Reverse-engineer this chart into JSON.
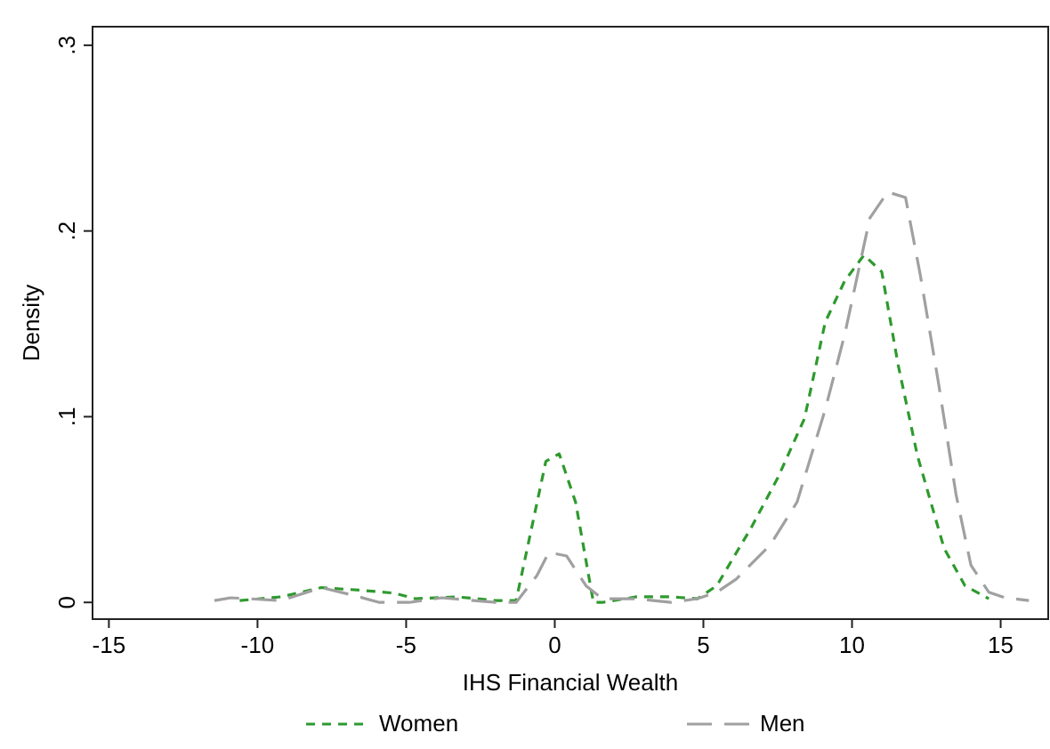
{
  "chart_data": {
    "type": "line",
    "xlabel": "IHS Financial Wealth",
    "ylabel": "Density",
    "xlim": [
      -15.55,
      16.6
    ],
    "ylim": [
      -0.009,
      0.31
    ],
    "xticks": [
      -15,
      -10,
      -5,
      0,
      5,
      10,
      15
    ],
    "yticks": [
      {
        "value": 0,
        "label": "0"
      },
      {
        "value": 0.1,
        "label": ".1"
      },
      {
        "value": 0.2,
        "label": ".2"
      },
      {
        "value": 0.3,
        "label": ".3"
      }
    ],
    "grid": false,
    "legend": "bottom",
    "marker": "none",
    "line_style": "dashed",
    "series": [
      {
        "name": "Women",
        "color": "#2e9a2e",
        "x": [
          -10.6,
          -9.2,
          -7.85,
          -6.5,
          -5.4,
          -4.7,
          -3.3,
          -2.0,
          -1.3,
          -0.3,
          0.15,
          0.7,
          1.3,
          1.6,
          2.75,
          3.9,
          4.8,
          5.45,
          6.6,
          7.5,
          8.4,
          9.1,
          9.75,
          10.4,
          11.0,
          11.55,
          12.2,
          13.1,
          13.8,
          14.6
        ],
        "values": [
          0.001,
          0.003,
          0.008,
          0.0065,
          0.005,
          0.002,
          0.003,
          0.001,
          0.001,
          0.076,
          0.08,
          0.054,
          0,
          0,
          0.003,
          0.003,
          0.002,
          0.009,
          0.04,
          0.067,
          0.099,
          0.151,
          0.173,
          0.187,
          0.178,
          0.128,
          0.079,
          0.029,
          0.009,
          0.002
        ]
      },
      {
        "name": "Men",
        "color": "#a0a0a0",
        "x": [
          -11.45,
          -10.9,
          -9.2,
          -7.85,
          -6.7,
          -5.9,
          -4.9,
          -3.8,
          -2.0,
          -1.3,
          -0.6,
          -0.2,
          0.4,
          1.05,
          1.6,
          2.75,
          3.9,
          4.8,
          5.45,
          6.1,
          7.25,
          8.15,
          9.1,
          9.75,
          10.6,
          11.2,
          11.8,
          12.3,
          12.9,
          13.5,
          14.0,
          14.6,
          15.15,
          15.95
        ],
        "values": [
          0.001,
          0.0025,
          0.001,
          0.008,
          0.0035,
          0,
          0,
          0.0025,
          0,
          0,
          0.0145,
          0.027,
          0.025,
          0.009,
          0.002,
          0.002,
          0,
          0.002,
          0.0055,
          0.0125,
          0.031,
          0.054,
          0.104,
          0.144,
          0.207,
          0.221,
          0.218,
          0.176,
          0.119,
          0.058,
          0.02,
          0.0055,
          0.0025,
          0.001
        ]
      }
    ]
  }
}
